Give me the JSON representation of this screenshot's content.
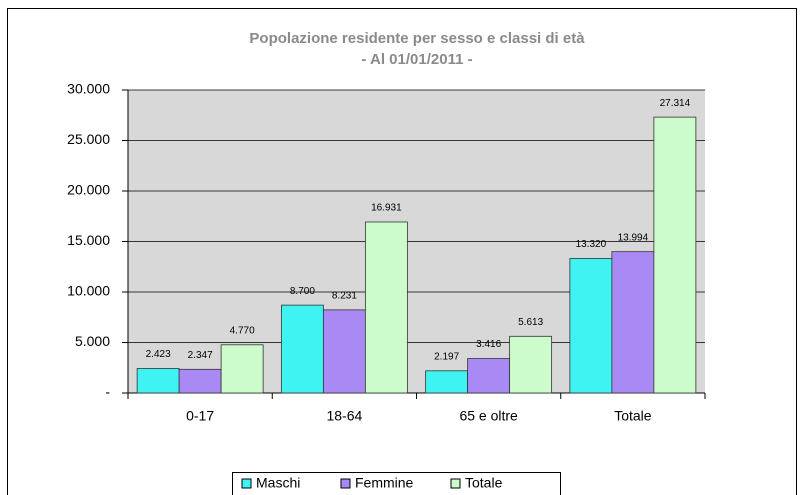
{
  "chart_data": {
    "type": "bar",
    "title": "Popolazione residente per sesso e classi di età",
    "subtitle": "- Al 01/01/2011 -",
    "categories": [
      "0-17",
      "18-64",
      "65 e oltre",
      "Totale"
    ],
    "series": [
      {
        "name": "Maschi",
        "color": "#3ff3f3",
        "values": [
          2423,
          8700,
          2197,
          13320
        ],
        "value_labels": [
          "2.423",
          "8.700",
          "2.197",
          "13.320"
        ]
      },
      {
        "name": "Femmine",
        "color": "#a98af5",
        "values": [
          2347,
          8231,
          3416,
          13994
        ],
        "value_labels": [
          "2.347",
          "8.231",
          "3.416",
          "13.994"
        ]
      },
      {
        "name": "Totale",
        "color": "#ccfccc",
        "values": [
          4770,
          16931,
          5613,
          27314
        ],
        "value_labels": [
          "4.770",
          "16.931",
          "5.613",
          "27.314"
        ]
      }
    ],
    "ylim": [
      0,
      30000
    ],
    "yticks": [
      {
        "value": 0,
        "label": "-"
      },
      {
        "value": 5000,
        "label": "5.000"
      },
      {
        "value": 10000,
        "label": "10.000"
      },
      {
        "value": 15000,
        "label": "15.000"
      },
      {
        "value": 20000,
        "label": "20.000"
      },
      {
        "value": 25000,
        "label": "25.000"
      },
      {
        "value": 30000,
        "label": "30.000"
      }
    ],
    "grid": true,
    "legend": "bottom"
  }
}
